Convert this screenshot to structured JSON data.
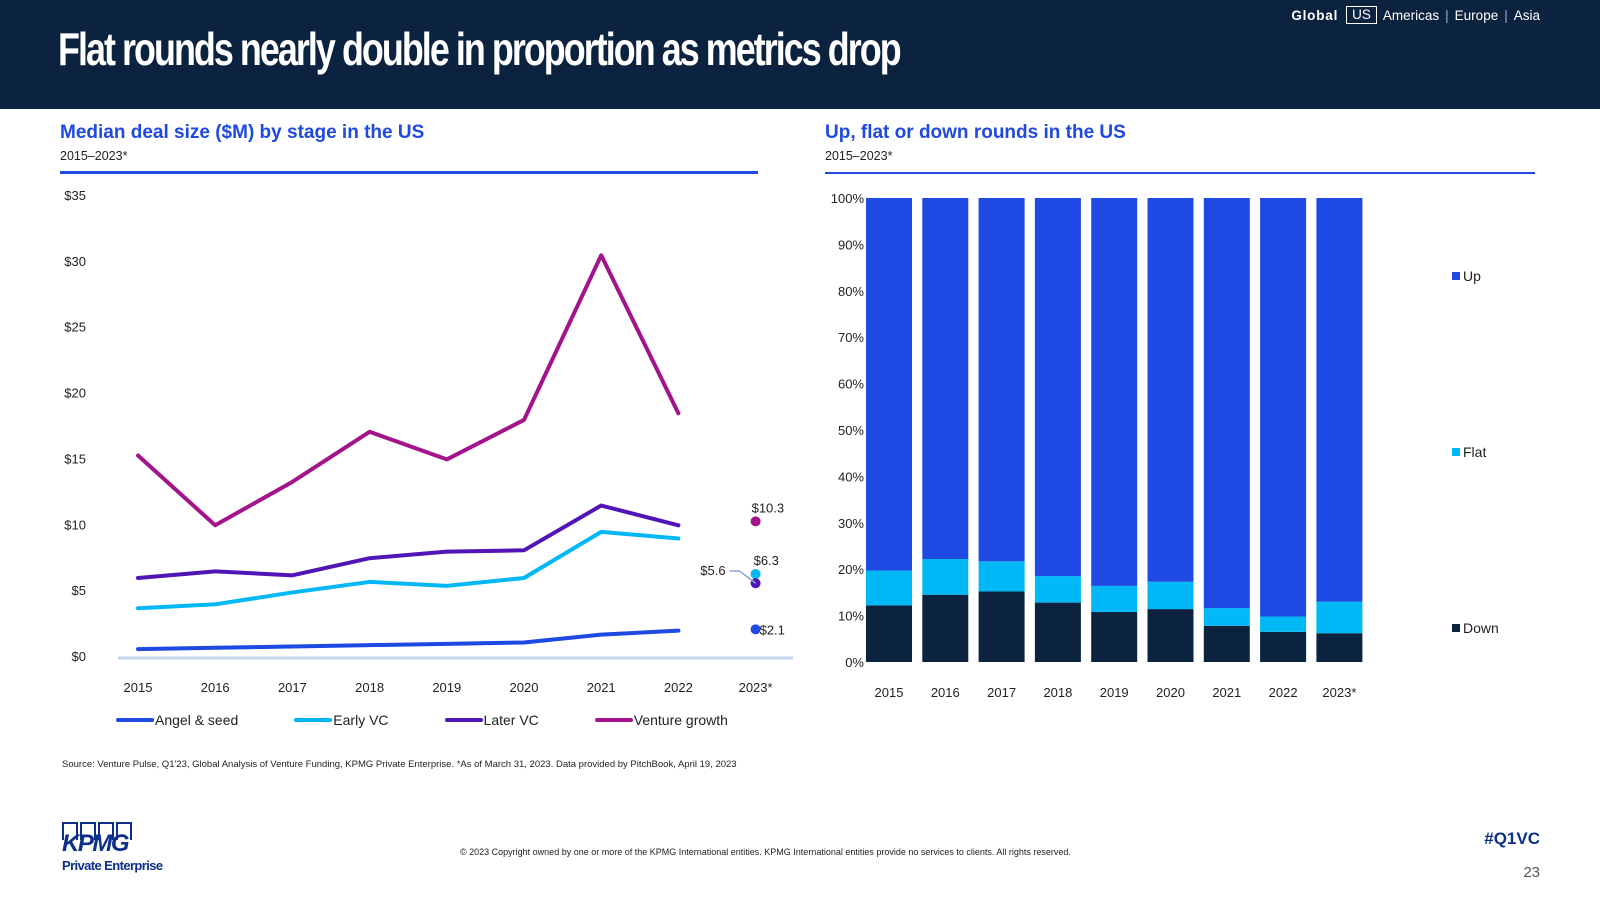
{
  "header": {
    "title": "Flat rounds nearly double in proportion as metrics drop",
    "regions": {
      "global": "Global",
      "us": "US",
      "americas": "Americas",
      "europe": "Europe",
      "asia": "Asia",
      "separator": "|"
    }
  },
  "left_panel": {
    "title": "Median deal size ($M) by stage in the US",
    "subtitle": "2015–2023*"
  },
  "right_panel": {
    "title": "Up, flat or down rounds in the US",
    "subtitle": "2015–2023*"
  },
  "colors": {
    "navy": "#0c233f",
    "blue": "#1e49e2",
    "cyan": "#00b8f5",
    "purple": "#5114b6",
    "magenta": "#a3138a"
  },
  "chart_data": [
    {
      "type": "line",
      "title": "Median deal size ($M) by stage in the US",
      "subtitle": "2015–2023*",
      "categories": [
        "2015",
        "2016",
        "2017",
        "2018",
        "2019",
        "2020",
        "2021",
        "2022",
        "2023*"
      ],
      "ylim": [
        0,
        35
      ],
      "yticks": [
        0,
        5,
        10,
        15,
        20,
        25,
        30,
        35
      ],
      "ytick_labels": [
        "$0",
        "$5",
        "$10",
        "$15",
        "$20",
        "$25",
        "$30",
        "$35"
      ],
      "grid": false,
      "legend_position": "bottom",
      "note": "2023* shown as standalone markers",
      "series": [
        {
          "name": "Angel & seed",
          "color": "#1e49e2",
          "values": [
            0.6,
            0.7,
            0.8,
            0.9,
            1.0,
            1.1,
            1.7,
            2.0,
            2.1
          ],
          "last_label": "$2.1"
        },
        {
          "name": "Early VC",
          "color": "#00b8f5",
          "values": [
            3.7,
            4.0,
            4.9,
            5.7,
            5.4,
            6.0,
            9.5,
            9.0,
            6.3
          ],
          "last_label": "$6.3"
        },
        {
          "name": "Later VC",
          "color": "#5114b6",
          "values": [
            6.0,
            6.5,
            6.2,
            7.5,
            8.0,
            8.1,
            11.5,
            10.0,
            5.6
          ],
          "last_label": "$5.6"
        },
        {
          "name": "Venture growth",
          "color": "#a3138a",
          "values": [
            15.3,
            10.0,
            13.3,
            17.1,
            15.0,
            18.0,
            30.5,
            18.5,
            10.3
          ],
          "last_label": "$10.3"
        }
      ]
    },
    {
      "type": "bar",
      "stacked": true,
      "title": "Up, flat or down rounds in the US",
      "subtitle": "2015–2023*",
      "categories": [
        "2015",
        "2016",
        "2017",
        "2018",
        "2019",
        "2020",
        "2021",
        "2022",
        "2023*"
      ],
      "ylim": [
        0,
        100
      ],
      "yticks": [
        0,
        10,
        20,
        30,
        40,
        50,
        60,
        70,
        80,
        90,
        100
      ],
      "ytick_labels": [
        "0%",
        "10%",
        "20%",
        "30%",
        "40%",
        "50%",
        "60%",
        "70%",
        "80%",
        "90%",
        "100%"
      ],
      "legend_position": "right",
      "series": [
        {
          "name": "Down",
          "color": "#0c233f",
          "values": [
            12.2,
            14.5,
            15.2,
            12.8,
            10.8,
            11.4,
            7.8,
            6.5,
            6.2
          ]
        },
        {
          "name": "Flat",
          "color": "#00b8f5",
          "values": [
            7.5,
            7.7,
            6.5,
            5.7,
            5.6,
            5.9,
            3.8,
            3.3,
            6.8
          ]
        },
        {
          "name": "Up",
          "color": "#1e49e2",
          "values": [
            80.3,
            77.8,
            78.3,
            81.5,
            83.6,
            82.7,
            88.4,
            90.2,
            87.0
          ]
        }
      ]
    }
  ],
  "footer": {
    "source": "Source: Venture Pulse, Q1'23, Global Analysis of Venture Funding, KPMG Private Enterprise. *As of March 31, 2023. Data provided by PitchBook, April 19, 2023",
    "copyright": "© 2023 Copyright owned by one or more of the KPMG International entities. KPMG International entities provide no services to clients. All rights reserved.",
    "hashtag": "#Q1VC",
    "page_number": "23",
    "logo_word": "KPMG",
    "logo_sub": "Private Enterprise"
  }
}
